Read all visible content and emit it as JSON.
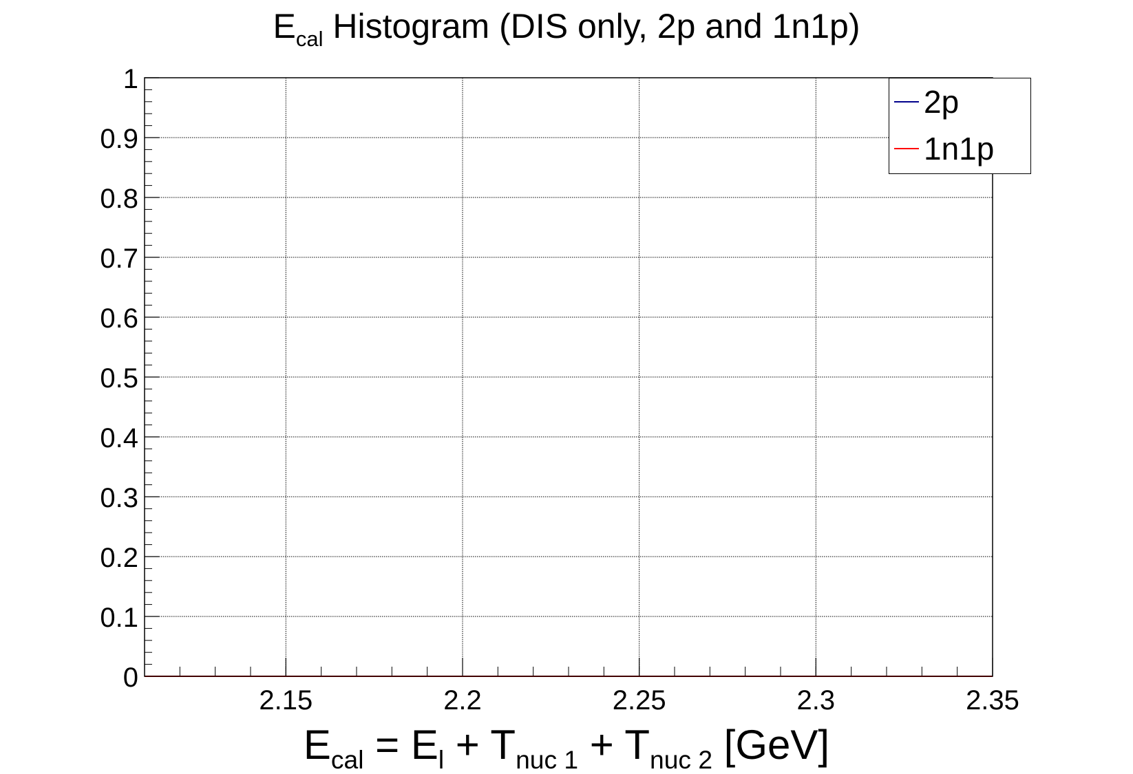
{
  "title": {
    "main": "E",
    "sub": "cal",
    "rest": " Histogram (DIS only, 2p and 1n1p)"
  },
  "xlabel_parts": [
    {
      "t": "E"
    },
    {
      "s": "cal"
    },
    {
      "t": " = E"
    },
    {
      "s": "l"
    },
    {
      "t": " + T"
    },
    {
      "s": "nuc 1"
    },
    {
      "t": " + T"
    },
    {
      "s": "nuc 2"
    },
    {
      "t": " [GeV]"
    }
  ],
  "chart_data": {
    "type": "line",
    "title": "E_cal Histogram (DIS only, 2p and 1n1p)",
    "xlabel": "E_cal = E_l + T_nuc 1 + T_nuc 2 [GeV]",
    "ylabel": "",
    "xlim": [
      2.11,
      2.35
    ],
    "ylim": [
      0,
      1
    ],
    "x_ticks": [
      "2.15",
      "2.2",
      "2.25",
      "2.3",
      "2.35"
    ],
    "y_ticks": [
      "0",
      "0.1",
      "0.2",
      "0.3",
      "0.4",
      "0.5",
      "0.6",
      "0.7",
      "0.8",
      "0.9",
      "1"
    ],
    "grid": true,
    "legend_position": "top-right",
    "series": [
      {
        "name": "2p",
        "color": "#00008b",
        "x": [
          2.11,
          2.35
        ],
        "y": [
          0,
          0
        ]
      },
      {
        "name": "1n1p",
        "color": "#ff0000",
        "x": [
          2.11,
          2.35
        ],
        "y": [
          0,
          0
        ]
      }
    ]
  }
}
